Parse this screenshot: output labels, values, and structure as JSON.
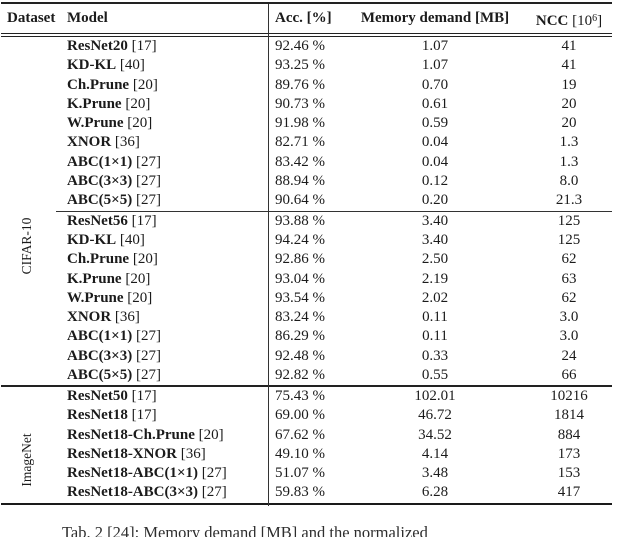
{
  "page": {
    "background": "#ffffff",
    "text_color": "#1b1b1b",
    "rule_color": "#222222"
  },
  "table": {
    "headers": {
      "dataset": "Dataset",
      "model": "Model",
      "acc": "Acc. [%]",
      "memory": "Memory demand [MB]",
      "ncc_name": "NCC",
      "ncc_bracket_open": "[10",
      "ncc_exponent": "6",
      "ncc_bracket_close": "]"
    },
    "sections": [
      {
        "dataset_label": "CIFAR-10",
        "subgroups": [
          [
            {
              "model": "ResNet20",
              "ref": "[17]",
              "acc": "92.46 %",
              "memory": "1.07",
              "ncc": "41"
            },
            {
              "model": "KD-KL",
              "ref": "[40]",
              "acc": "93.25 %",
              "memory": "1.07",
              "ncc": "41"
            },
            {
              "model": "Ch.Prune",
              "ref": "[20]",
              "acc": "89.76 %",
              "memory": "0.70",
              "ncc": "19"
            },
            {
              "model": "K.Prune",
              "ref": "[20]",
              "acc": "90.73 %",
              "memory": "0.61",
              "ncc": "20"
            },
            {
              "model": "W.Prune",
              "ref": "[20]",
              "acc": "91.98 %",
              "memory": "0.59",
              "ncc": "20"
            },
            {
              "model": "XNOR",
              "ref": "[36]",
              "acc": "82.71 %",
              "memory": "0.04",
              "ncc": "1.3"
            },
            {
              "model": "ABC(1×1)",
              "ref": "[27]",
              "acc": "83.42 %",
              "memory": "0.04",
              "ncc": "1.3"
            },
            {
              "model": "ABC(3×3)",
              "ref": "[27]",
              "acc": "88.94 %",
              "memory": "0.12",
              "ncc": "8.0"
            },
            {
              "model": "ABC(5×5)",
              "ref": "[27]",
              "acc": "90.64 %",
              "memory": "0.20",
              "ncc": "21.3"
            }
          ],
          [
            {
              "model": "ResNet56",
              "ref": "[17]",
              "acc": "93.88 %",
              "memory": "3.40",
              "ncc": "125"
            },
            {
              "model": "KD-KL",
              "ref": "[40]",
              "acc": "94.24 %",
              "memory": "3.40",
              "ncc": "125"
            },
            {
              "model": "Ch.Prune",
              "ref": "[20]",
              "acc": "92.86 %",
              "memory": "2.50",
              "ncc": "62"
            },
            {
              "model": "K.Prune",
              "ref": "[20]",
              "acc": "93.04 %",
              "memory": "2.19",
              "ncc": "63"
            },
            {
              "model": "W.Prune",
              "ref": "[20]",
              "acc": "93.54 %",
              "memory": "2.02",
              "ncc": "62"
            },
            {
              "model": "XNOR",
              "ref": "[36]",
              "acc": "83.24 %",
              "memory": "0.11",
              "ncc": "3.0"
            },
            {
              "model": "ABC(1×1)",
              "ref": "[27]",
              "acc": "86.29 %",
              "memory": "0.11",
              "ncc": "3.0"
            },
            {
              "model": "ABC(3×3)",
              "ref": "[27]",
              "acc": "92.48 %",
              "memory": "0.33",
              "ncc": "24"
            },
            {
              "model": "ABC(5×5)",
              "ref": "[27]",
              "acc": "92.82 %",
              "memory": "0.55",
              "ncc": "66"
            }
          ]
        ]
      },
      {
        "dataset_label": "ImageNet",
        "subgroups": [
          [
            {
              "model": "ResNet50",
              "ref": "[17]",
              "acc": "75.43 %",
              "memory": "102.01",
              "ncc": "10216"
            },
            {
              "model": "ResNet18",
              "ref": "[17]",
              "acc": "69.00 %",
              "memory": "46.72",
              "ncc": "1814"
            },
            {
              "model": "ResNet18-Ch.Prune",
              "ref": "[20]",
              "acc": "67.62 %",
              "memory": "34.52",
              "ncc": "884"
            },
            {
              "model": "ResNet18-XNOR",
              "ref": "[36]",
              "acc": "49.10 %",
              "memory": "4.14",
              "ncc": "173"
            },
            {
              "model": "ResNet18-ABC(1×1)",
              "ref": "[27]",
              "acc": "51.07 %",
              "memory": "3.48",
              "ncc": "153"
            },
            {
              "model": "ResNet18-ABC(3×3)",
              "ref": "[27]",
              "acc": "59.83 %",
              "memory": "6.28",
              "ncc": "417"
            }
          ]
        ]
      }
    ]
  },
  "caption": {
    "visible_fragment": "Tab. 2 [24]: Memory demand [MB] and the normalized"
  }
}
